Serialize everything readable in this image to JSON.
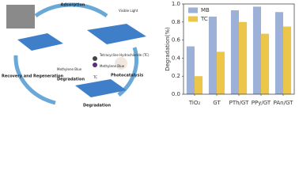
{
  "diagram": {
    "labels": [
      "Adsorption",
      "Visible Light",
      "Tetracycline Hydrochloride (TC)",
      "Methylene Blue",
      "Recovery and Regeneration",
      "Photocatalysis",
      "Methylene Blue",
      "TC",
      "Degradation",
      "Degradation"
    ]
  },
  "chart_data": {
    "type": "bar",
    "y_label": "Degradation(%)",
    "categories": [
      "TiO₂",
      "GT",
      "PTh/GT",
      "PPy/GT",
      "PAn/GT"
    ],
    "series": [
      {
        "name": "MB",
        "color": "#9db0d8",
        "values": [
          0.53,
          0.86,
          0.93,
          0.97,
          0.91
        ]
      },
      {
        "name": "TC",
        "color": "#ecc64a",
        "values": [
          0.2,
          0.47,
          0.8,
          0.67,
          0.75
        ]
      }
    ],
    "ylim": [
      0,
      1
    ],
    "yticks": [
      {
        "value": 0,
        "label": "0.0"
      },
      0.2,
      0.4,
      0.6,
      0.8,
      {
        "value": 1,
        "label": "1.0"
      }
    ],
    "legend": "upper-left"
  }
}
